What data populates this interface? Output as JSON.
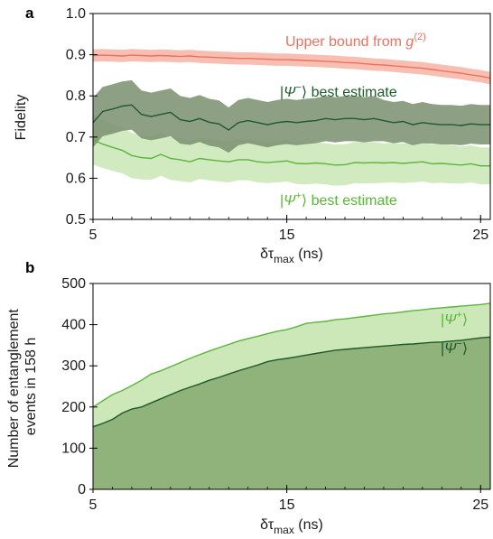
{
  "chart_data": [
    {
      "panel": "a",
      "type": "line",
      "ylabel": "Fidelity",
      "xlabel_main": "δτ",
      "xlabel_sub": "max",
      "xlabel_unit": "(ns)",
      "xlim": [
        5,
        25.5
      ],
      "ylim": [
        0.5,
        1.0
      ],
      "xticks": [
        "5",
        "15",
        "25"
      ],
      "yticks": [
        "0.5",
        "0.6",
        "0.7",
        "0.8",
        "0.9",
        "1.0"
      ],
      "x": [
        5,
        5.5,
        6,
        6.5,
        7,
        7.5,
        8,
        8.5,
        9,
        9.5,
        10,
        10.5,
        11,
        11.5,
        12,
        12.5,
        13,
        13.5,
        14,
        14.5,
        15,
        15.5,
        16,
        16.5,
        17,
        17.5,
        18,
        18.5,
        19,
        19.5,
        20,
        20.5,
        21,
        21.5,
        22,
        22.5,
        23,
        23.5,
        24,
        24.5,
        25,
        25.5
      ],
      "series": [
        {
          "name": "Upper bound from g(2)",
          "ann_main": "Upper bound from ",
          "ann_g": "g",
          "ann_sup": "(2)",
          "color": "#f07060",
          "band_color": "#f5b8a8",
          "values": [
            0.898,
            0.899,
            0.898,
            0.897,
            0.899,
            0.898,
            0.897,
            0.898,
            0.897,
            0.896,
            0.897,
            0.895,
            0.894,
            0.893,
            0.892,
            0.891,
            0.891,
            0.89,
            0.889,
            0.888,
            0.888,
            0.887,
            0.886,
            0.885,
            0.884,
            0.883,
            0.881,
            0.88,
            0.878,
            0.876,
            0.875,
            0.873,
            0.871,
            0.869,
            0.867,
            0.864,
            0.861,
            0.858,
            0.855,
            0.851,
            0.848,
            0.843
          ],
          "err": [
            0.015,
            0.015,
            0.015,
            0.015,
            0.015,
            0.015,
            0.015,
            0.015,
            0.015,
            0.015,
            0.015,
            0.015,
            0.015,
            0.015,
            0.015,
            0.015,
            0.015,
            0.015,
            0.015,
            0.015,
            0.015,
            0.015,
            0.015,
            0.015,
            0.015,
            0.015,
            0.015,
            0.015,
            0.015,
            0.015,
            0.015,
            0.015,
            0.015,
            0.015,
            0.015,
            0.015,
            0.015,
            0.015,
            0.015,
            0.015,
            0.015,
            0.015
          ]
        },
        {
          "name": "|Ψ−⟩ best estimate",
          "ann_main": "best estimate",
          "ann_sign": "−",
          "color": "#1e5a2a",
          "band_color": "#7a8f6e",
          "values": [
            0.735,
            0.762,
            0.768,
            0.775,
            0.778,
            0.755,
            0.75,
            0.755,
            0.76,
            0.742,
            0.738,
            0.745,
            0.736,
            0.732,
            0.717,
            0.735,
            0.74,
            0.735,
            0.73,
            0.735,
            0.738,
            0.735,
            0.738,
            0.74,
            0.745,
            0.742,
            0.745,
            0.745,
            0.742,
            0.745,
            0.74,
            0.735,
            0.738,
            0.73,
            0.735,
            0.732,
            0.73,
            0.73,
            0.728,
            0.732,
            0.73,
            0.73
          ],
          "err": [
            0.06,
            0.06,
            0.06,
            0.06,
            0.06,
            0.058,
            0.058,
            0.058,
            0.058,
            0.058,
            0.057,
            0.057,
            0.057,
            0.057,
            0.055,
            0.055,
            0.055,
            0.055,
            0.055,
            0.055,
            0.055,
            0.055,
            0.055,
            0.055,
            0.055,
            0.055,
            0.055,
            0.055,
            0.055,
            0.055,
            0.05,
            0.05,
            0.05,
            0.05,
            0.05,
            0.048,
            0.048,
            0.048,
            0.048,
            0.048,
            0.048,
            0.048
          ]
        },
        {
          "name": "|Ψ+⟩ best estimate",
          "ann_main": "best estimate",
          "ann_sign": "+",
          "color": "#5bb53a",
          "band_color": "#cce8b8",
          "values": [
            0.693,
            0.683,
            0.675,
            0.668,
            0.655,
            0.65,
            0.648,
            0.658,
            0.648,
            0.645,
            0.64,
            0.648,
            0.645,
            0.642,
            0.64,
            0.645,
            0.645,
            0.64,
            0.638,
            0.64,
            0.642,
            0.636,
            0.635,
            0.637,
            0.635,
            0.632,
            0.633,
            0.638,
            0.637,
            0.638,
            0.637,
            0.638,
            0.636,
            0.638,
            0.64,
            0.635,
            0.636,
            0.634,
            0.632,
            0.635,
            0.63,
            0.63
          ],
          "err": [
            0.06,
            0.058,
            0.057,
            0.056,
            0.055,
            0.053,
            0.052,
            0.052,
            0.052,
            0.052,
            0.05,
            0.05,
            0.05,
            0.05,
            0.05,
            0.05,
            0.05,
            0.05,
            0.05,
            0.05,
            0.05,
            0.05,
            0.05,
            0.05,
            0.05,
            0.05,
            0.05,
            0.05,
            0.05,
            0.05,
            0.048,
            0.048,
            0.048,
            0.048,
            0.048,
            0.047,
            0.047,
            0.047,
            0.045,
            0.045,
            0.045,
            0.045
          ]
        }
      ]
    },
    {
      "panel": "b",
      "type": "area",
      "ylabel_line1": "Number of entanglement",
      "ylabel_line2": "events in 158 h",
      "xlabel_main": "δτ",
      "xlabel_sub": "max",
      "xlabel_unit": "(ns)",
      "xlim": [
        5,
        25.5
      ],
      "ylim": [
        0,
        500
      ],
      "xticks": [
        "5",
        "15",
        "25"
      ],
      "yticks": [
        "0",
        "100",
        "200",
        "300",
        "400",
        "500"
      ],
      "x": [
        5,
        5.5,
        6,
        6.5,
        7,
        7.5,
        8,
        8.5,
        9,
        9.5,
        10,
        10.5,
        11,
        11.5,
        12,
        12.5,
        13,
        13.5,
        14,
        14.5,
        15,
        15.5,
        16,
        16.5,
        17,
        17.5,
        18,
        18.5,
        19,
        19.5,
        20,
        20.5,
        21,
        21.5,
        22,
        22.5,
        23,
        23.5,
        24,
        24.5,
        25,
        25.5
      ],
      "series": [
        {
          "name": "|Ψ+⟩",
          "ann_sign": "+",
          "color": "#5bb53a",
          "band_color": "#cce8b8",
          "values": [
            200,
            215,
            230,
            240,
            252,
            265,
            280,
            288,
            298,
            308,
            318,
            327,
            336,
            344,
            352,
            360,
            366,
            372,
            378,
            384,
            388,
            395,
            403,
            406,
            408,
            412,
            414,
            417,
            420,
            423,
            426,
            428,
            431,
            434,
            436,
            439,
            441,
            443,
            445,
            447,
            449,
            452
          ]
        },
        {
          "name": "|Ψ−⟩",
          "ann_sign": "−",
          "color": "#1e5a2a",
          "band_color": "#8fb37a",
          "values": [
            152,
            160,
            170,
            185,
            195,
            200,
            210,
            220,
            230,
            240,
            248,
            256,
            265,
            272,
            280,
            288,
            295,
            302,
            310,
            315,
            318,
            322,
            326,
            330,
            334,
            338,
            340,
            342,
            344,
            346,
            348,
            350,
            352,
            353,
            355,
            357,
            358,
            360,
            362,
            365,
            368,
            370
          ]
        }
      ]
    }
  ]
}
